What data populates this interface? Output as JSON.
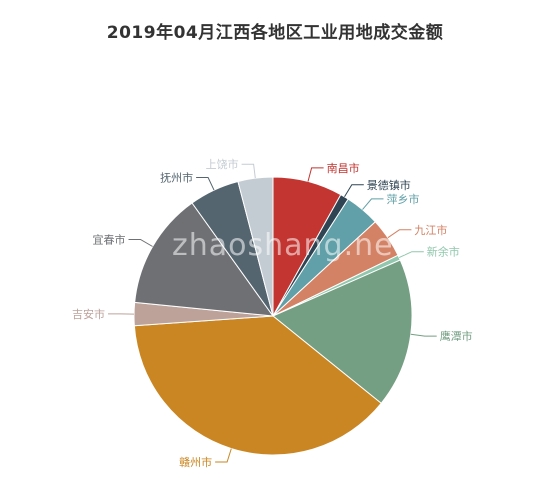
{
  "chart_data": {
    "type": "pie",
    "title": "2019年04月江西各地区工业用地成交金额",
    "watermark": "zhaoshang.net",
    "label_color": "#999999",
    "slices": [
      {
        "name": "南昌市",
        "value": 8.2,
        "color": "#c23531"
      },
      {
        "name": "景德镇市",
        "value": 1.0,
        "color": "#2f4554"
      },
      {
        "name": "萍乡市",
        "value": 4.1,
        "color": "#61a0a8"
      },
      {
        "name": "九江市",
        "value": 4.7,
        "color": "#d48265"
      },
      {
        "name": "新余市",
        "value": 0.6,
        "color": "#91c7ae"
      },
      {
        "name": "鹰潭市",
        "value": 17.6,
        "color": "#749f83"
      },
      {
        "name": "赣州市",
        "value": 38.5,
        "color": "#ca8622"
      },
      {
        "name": "吉安市",
        "value": 2.7,
        "color": "#bda29a"
      },
      {
        "name": "宜春市",
        "value": 13.7,
        "color": "#6e7074"
      },
      {
        "name": "抚州市",
        "value": 5.9,
        "color": "#546570"
      },
      {
        "name": "上饶市",
        "value": 4.1,
        "color": "#c4ccd3"
      }
    ]
  }
}
